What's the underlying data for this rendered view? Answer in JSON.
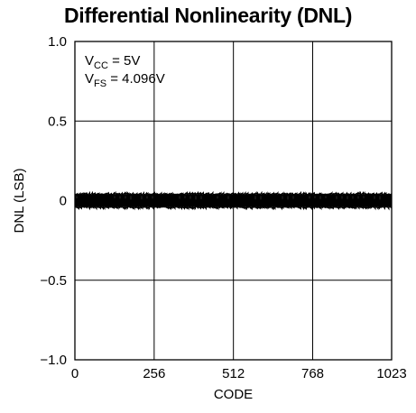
{
  "chart_data": {
    "type": "line",
    "title": "Differential Nonlinearity (DNL)",
    "xlabel": "CODE",
    "ylabel": "DNL (LSB)",
    "xlim": [
      0,
      1023
    ],
    "ylim": [
      -1.0,
      1.0
    ],
    "x_ticks": [
      0,
      256,
      512,
      768,
      1023
    ],
    "x_tick_labels": [
      "0",
      "256",
      "512",
      "768",
      "1023"
    ],
    "y_ticks": [
      1.0,
      0.5,
      0,
      -0.5,
      -1.0
    ],
    "y_tick_labels": [
      "1.0",
      "0.5",
      "0",
      "−0.5",
      "−1.0"
    ],
    "grid": true,
    "annotations": [
      {
        "main": "V",
        "sub": "CC",
        "rest": " = 5V"
      },
      {
        "main": "V",
        "sub": "FS",
        "rest": " = 4.096V"
      }
    ],
    "series": [
      {
        "line_color": "#000000",
        "x_range": [
          0,
          1023
        ],
        "center": 0,
        "band_min": -0.04,
        "band_max": 0.04
      }
    ]
  }
}
